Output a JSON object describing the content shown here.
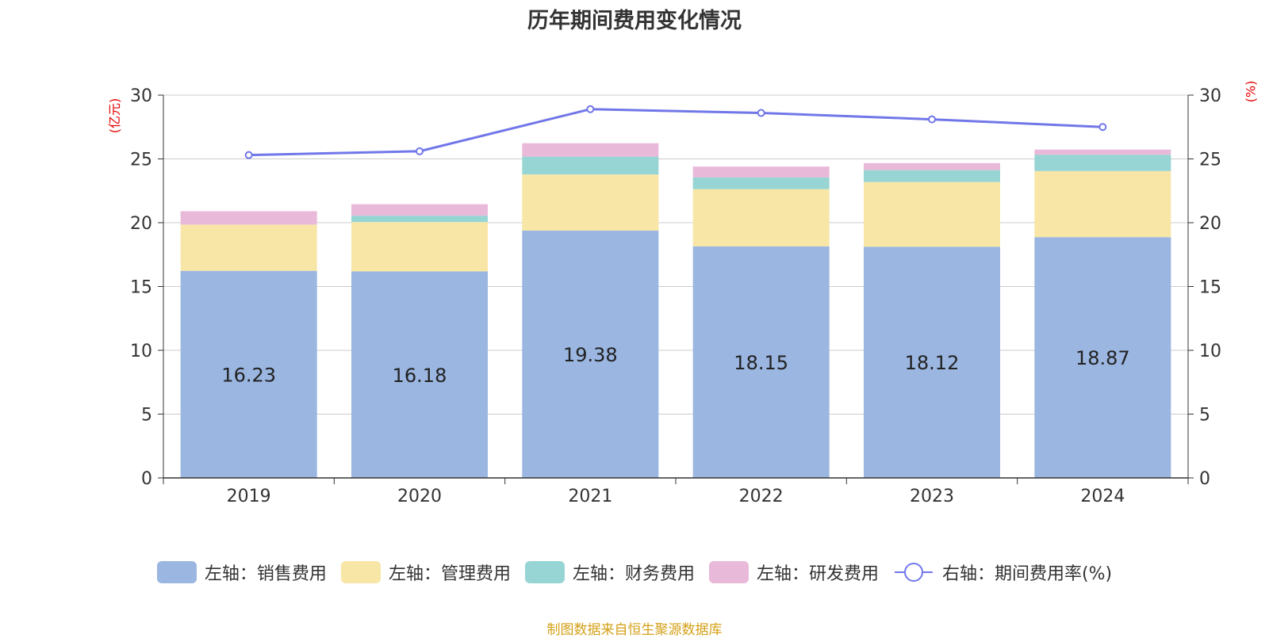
{
  "chart_data": {
    "type": "bar",
    "stacked": true,
    "title": "历年期间费用变化情况",
    "categories": [
      "2019",
      "2020",
      "2021",
      "2022",
      "2023",
      "2024"
    ],
    "y_left": {
      "label": "(亿元)",
      "ylim": [
        0,
        30
      ],
      "ticks": [
        0,
        5,
        10,
        15,
        20,
        25,
        30
      ]
    },
    "y_right": {
      "label": "(%)",
      "ylim": [
        0,
        30
      ],
      "ticks": [
        0,
        5,
        10,
        15,
        20,
        25,
        30
      ]
    },
    "series": [
      {
        "name": "左轴：销售费用",
        "axis": "left",
        "type": "bar",
        "color": "#9ab6e1",
        "values": [
          16.23,
          16.18,
          19.38,
          18.15,
          18.12,
          18.87
        ],
        "show_labels": true
      },
      {
        "name": "左轴：管理费用",
        "axis": "left",
        "type": "bar",
        "color": "#f8e6a6",
        "values": [
          3.62,
          3.87,
          4.4,
          4.48,
          5.07,
          5.18
        ]
      },
      {
        "name": "左轴：财务费用",
        "axis": "left",
        "type": "bar",
        "color": "#97d4d4",
        "values": [
          0.0,
          0.5,
          1.4,
          0.92,
          0.93,
          1.28
        ]
      },
      {
        "name": "左轴：研发费用",
        "axis": "left",
        "type": "bar",
        "color": "#e8b9d9",
        "values": [
          1.05,
          0.9,
          1.05,
          0.85,
          0.55,
          0.4
        ]
      },
      {
        "name": "右轴：期间费用率(%)",
        "axis": "right",
        "type": "line",
        "color": "#7177e8",
        "values": [
          25.3,
          25.6,
          28.9,
          28.6,
          28.1,
          27.5
        ]
      }
    ],
    "grid": true,
    "legend_position": "bottom"
  },
  "source": "制图数据来自恒生聚源数据库"
}
